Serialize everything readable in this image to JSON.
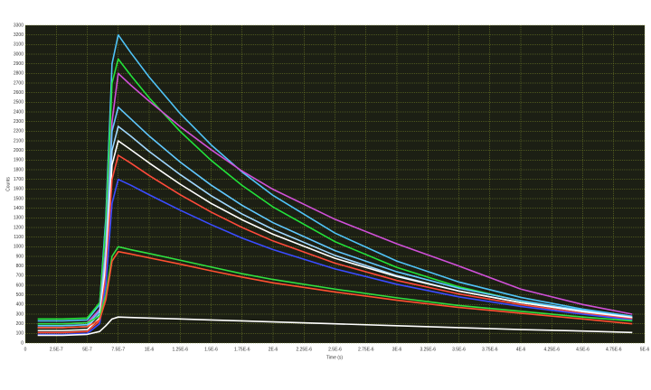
{
  "chart_data": {
    "type": "line",
    "xlabel": "Time (s)",
    "ylabel": "Counts",
    "x": [
      1e-07,
      3e-07,
      5e-07,
      6e-07,
      6.5e-07,
      7e-07,
      7.5e-07,
      8.5e-07,
      1e-06,
      1.25e-06,
      1.5e-06,
      1.75e-06,
      2e-06,
      2.5e-06,
      3e-06,
      3.5e-06,
      4e-06,
      4.5e-06,
      4.9e-06
    ],
    "series": [
      {
        "color": "#4fc3f7",
        "values": [
          230,
          230,
          240,
          400,
          1300,
          2900,
          3200,
          3018,
          2762,
          2384,
          2058,
          1776,
          1533,
          1142,
          851,
          634,
          474,
          352,
          278
        ]
      },
      {
        "color": "#22e33a",
        "values": [
          250,
          250,
          260,
          420,
          1200,
          2700,
          2950,
          2782,
          2546,
          2198,
          1897,
          1637,
          1413,
          1053,
          785,
          584,
          437,
          325,
          257
        ]
      },
      {
        "color": "#d050d8",
        "values": [
          200,
          200,
          210,
          350,
          1000,
          2300,
          2800,
          2680,
          2512,
          2248,
          2008,
          1786,
          1596,
          1285,
          1030,
          800,
          560,
          400,
          300
        ]
      },
      {
        "color": "#60c8ff",
        "values": [
          180,
          180,
          190,
          330,
          950,
          2200,
          2450,
          2330,
          2150,
          1880,
          1640,
          1430,
          1250,
          960,
          740,
          570,
          440,
          340,
          270
        ]
      },
      {
        "color": "#a0d8ff",
        "values": [
          160,
          160,
          170,
          300,
          900,
          2000,
          2250,
          2150,
          1990,
          1750,
          1530,
          1340,
          1180,
          910,
          700,
          540,
          420,
          325,
          260
        ]
      },
      {
        "color": "#ffffff",
        "values": [
          130,
          130,
          140,
          260,
          800,
          1850,
          2100,
          2010,
          1870,
          1650,
          1450,
          1280,
          1130,
          880,
          690,
          540,
          420,
          330,
          265
        ]
      },
      {
        "color": "#ff4a3a",
        "values": [
          110,
          110,
          120,
          230,
          700,
          1700,
          1950,
          1870,
          1740,
          1540,
          1360,
          1200,
          1060,
          830,
          650,
          510,
          400,
          310,
          250
        ]
      },
      {
        "color": "#3a4cff",
        "values": [
          90,
          90,
          100,
          200,
          600,
          1450,
          1700,
          1640,
          1540,
          1380,
          1230,
          1090,
          970,
          770,
          610,
          480,
          380,
          300,
          240
        ]
      },
      {
        "color": "#30e040",
        "values": [
          200,
          200,
          210,
          280,
          500,
          900,
          1000,
          970,
          930,
          860,
          790,
          720,
          660,
          560,
          470,
          390,
          330,
          270,
          230
        ]
      },
      {
        "color": "#ff5030",
        "values": [
          160,
          160,
          170,
          240,
          450,
          850,
          950,
          925,
          885,
          820,
          750,
          685,
          625,
          530,
          445,
          370,
          310,
          250,
          200
        ]
      },
      {
        "color": "#ffffff",
        "values": [
          80,
          80,
          90,
          120,
          180,
          250,
          270,
          265,
          260,
          250,
          240,
          230,
          220,
          200,
          180,
          160,
          140,
          125,
          110
        ]
      }
    ],
    "xlim": [
      0,
      5e-06
    ],
    "xticks": [
      0,
      {
        "value": 2.5e-07,
        "label": "2.5E-7"
      },
      {
        "value": 5e-07,
        "label": "5E-7"
      },
      {
        "value": 7.5e-07,
        "label": "7.5E-7"
      },
      {
        "value": 1e-06,
        "label": "1E-6"
      },
      {
        "value": 1.25e-06,
        "label": "1.25E-6"
      },
      {
        "value": 1.5e-06,
        "label": "1.5E-6"
      },
      {
        "value": 1.75e-06,
        "label": "1.75E-6"
      },
      {
        "value": 2e-06,
        "label": "2E-6"
      },
      {
        "value": 2.25e-06,
        "label": "2.25E-6"
      },
      {
        "value": 2.5e-06,
        "label": "2.5E-6"
      },
      {
        "value": 2.75e-06,
        "label": "2.75E-6"
      },
      {
        "value": 3e-06,
        "label": "3E-6"
      },
      {
        "value": 3.25e-06,
        "label": "3.25E-6"
      },
      {
        "value": 3.5e-06,
        "label": "3.5E-6"
      },
      {
        "value": 3.75e-06,
        "label": "3.75E-6"
      },
      {
        "value": 4e-06,
        "label": "4E-6"
      },
      {
        "value": 4.25e-06,
        "label": "4.25E-6"
      },
      {
        "value": 4.5e-06,
        "label": "4.5E-6"
      },
      {
        "value": 4.75e-06,
        "label": "4.75E-6"
      },
      {
        "value": 5e-06,
        "label": "5E-6"
      }
    ],
    "ylim": [
      0,
      3300
    ],
    "yticks": [
      0,
      100,
      200,
      300,
      400,
      500,
      600,
      700,
      800,
      900,
      1000,
      1100,
      1200,
      1300,
      1400,
      1500,
      1600,
      1700,
      1800,
      1900,
      2000,
      2100,
      2200,
      2300,
      2400,
      2500,
      2600,
      2700,
      2800,
      2900,
      3000,
      3100,
      3200,
      3300
    ],
    "grid": true
  }
}
